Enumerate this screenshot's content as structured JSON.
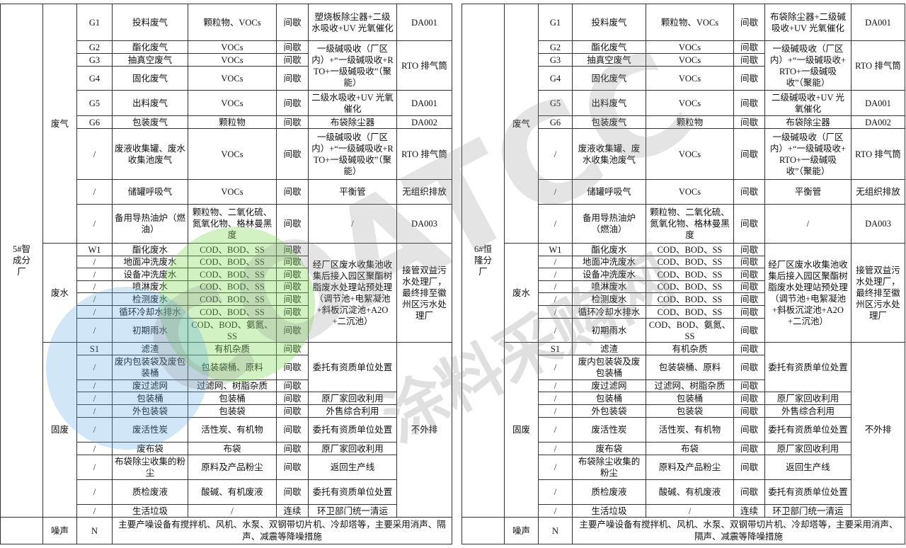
{
  "tables": [
    {
      "factory": "5#智成分厂",
      "groups": [
        {
          "category": "废气",
          "rows": [
            {
              "code": "G1",
              "name": "投料废气",
              "pollutant": "颗粒物、VOCs",
              "mode": "间歇",
              "treatment": "塑烧板除尘器+二级水吸收+UV 光氧催化",
              "outlet": "DA001"
            },
            {
              "code": "G2",
              "name": "酯化废气",
              "pollutant": "VOCs",
              "mode": "间歇",
              "treatment": "一级碱吸收（厂区内）+“一级碱吸收+RTO+一级碱吸收”（聚能）",
              "outlet": "RTO 排气筒"
            },
            {
              "code": "G3",
              "name": "抽真空废气",
              "pollutant": "VOCs",
              "mode": "间歇"
            },
            {
              "code": "G4",
              "name": "固化废气",
              "pollutant": "VOCs",
              "mode": "间歇"
            },
            {
              "code": "G5",
              "name": "出料废气",
              "pollutant": "VOCs",
              "mode": "间歇",
              "treatment": "二级水吸收+UV 光氧催化",
              "outlet": "DA001"
            },
            {
              "code": "G6",
              "name": "包装废气",
              "pollutant": "颗粒物",
              "mode": "间歇",
              "treatment": "布袋除尘器",
              "outlet": "DA002"
            },
            {
              "code": "/",
              "name": "废液收集罐、废水收集池废气",
              "pollutant": "VOCs",
              "mode": "间歇",
              "treatment": "一级碱吸收（厂区内）+“一级碱吸收+RTO+一级碱吸收”（聚能）",
              "outlet": "RTO 排气筒"
            },
            {
              "code": "/",
              "name": "储罐呼吸气",
              "pollutant": "VOCs",
              "mode": "间歇",
              "treatment": "平衡管",
              "outlet": "无组织排放"
            },
            {
              "code": "/",
              "name": "备用导热油炉（燃油）",
              "pollutant": "颗粒物、二氧化硫、氮氧化物、格林曼黑度",
              "mode": "间歇",
              "treatment": "/",
              "outlet": "DA003"
            }
          ]
        },
        {
          "category": "废水",
          "rows": [
            {
              "code": "W1",
              "name": "酯化废水",
              "pollutant": "COD、BOD、SS",
              "mode": "间歇",
              "treatment": "经厂区废水收集池收集后接入园区聚酯树脂废水处理站预处理（调节池+电絮凝池+斜板沉淀池+A2O+二沉池）",
              "outlet": "接管双益污水处理厂，最终排至徽州区污水处理厂"
            },
            {
              "code": "/",
              "name": "地面冲洗废水",
              "pollutant": "COD、BOD、SS",
              "mode": "间歇"
            },
            {
              "code": "/",
              "name": "设备冲洗废水",
              "pollutant": "COD、BOD、SS",
              "mode": "间歇"
            },
            {
              "code": "/",
              "name": "喷淋废水",
              "pollutant": "COD、BOD、SS",
              "mode": "间歇"
            },
            {
              "code": "/",
              "name": "检测废水",
              "pollutant": "COD、BOD、SS",
              "mode": "间歇"
            },
            {
              "code": "/",
              "name": "循环冷却水排水",
              "pollutant": "COD、BOD、SS",
              "mode": "间歇"
            },
            {
              "code": "/",
              "name": "初期雨水",
              "pollutant": "COD、BOD、氨氮、SS",
              "mode": "间歇"
            }
          ]
        },
        {
          "category": "固废",
          "rows": [
            {
              "code": "S1",
              "name": "滤渣",
              "pollutant": "有机杂质",
              "mode": "间歇",
              "treatment": "委托有资质单位处置",
              "outlet": "不外排"
            },
            {
              "code": "/",
              "name": "废内包装袋及废包装桶",
              "pollutant": "包装袋桶、原料",
              "mode": "间歇"
            },
            {
              "code": "/",
              "name": "废过滤网",
              "pollutant": "过滤网、树脂杂质",
              "mode": "间歇"
            },
            {
              "code": "/",
              "name": "包装桶",
              "pollutant": "包装桶",
              "mode": "间歇",
              "treatment": "原厂家回收利用"
            },
            {
              "code": "/",
              "name": "外包装袋",
              "pollutant": "包装袋",
              "mode": "间歇",
              "treatment": "外售综合利用"
            },
            {
              "code": "/",
              "name": "废活性炭",
              "pollutant": "活性炭、有机物",
              "mode": "间歇",
              "treatment": "委托有资质单位处置"
            },
            {
              "code": "/",
              "name": "废布袋",
              "pollutant": "布袋",
              "mode": "间歇",
              "treatment": "原厂家回收利用"
            },
            {
              "code": "/",
              "name": "布袋除尘收集的粉尘",
              "pollutant": "原料及产品粉尘",
              "mode": "间歇",
              "treatment": "返回生产线"
            },
            {
              "code": "/",
              "name": "质检废液",
              "pollutant": "酸碱、有机废液",
              "mode": "间歇",
              "treatment": "委托有资质单位处置"
            },
            {
              "code": "/",
              "name": "生活垃圾",
              "pollutant": "/",
              "mode": "连续",
              "treatment": "环卫部门统一清运"
            }
          ]
        }
      ],
      "noise": {
        "category": "噪声",
        "code": "N",
        "text": "主要产噪设备有搅拌机、风机、水泵、双钢带切片机、冷却塔等，主要采用消声、隔声、减震等降噪措施"
      }
    },
    {
      "factory": "6#恒隆分厂",
      "groups": [
        {
          "category": "废气",
          "rows": [
            {
              "code": "G1",
              "name": "投料废气",
              "pollutant": "颗粒物、VOCs",
              "mode": "间歇",
              "treatment": "布袋除尘器+二级碱吸收+UV 光氧催化",
              "outlet": "DA001"
            },
            {
              "code": "G2",
              "name": "酯化废气",
              "pollutant": "VOCs",
              "mode": "间歇",
              "treatment": "一级碱吸收（厂区内）+“一级碱吸收+RTO+一级碱吸收”（聚能）",
              "outlet": "RTO 排气筒"
            },
            {
              "code": "G3",
              "name": "抽真空废气",
              "pollutant": "VOCs",
              "mode": "间歇"
            },
            {
              "code": "G4",
              "name": "固化废气",
              "pollutant": "VOCs",
              "mode": "间歇"
            },
            {
              "code": "G5",
              "name": "出料废气",
              "pollutant": "VOCs",
              "mode": "间歇",
              "treatment": "二级碱吸收+UV 光氧催化",
              "outlet": "DA001"
            },
            {
              "code": "G6",
              "name": "包装废气",
              "pollutant": "颗粒物",
              "mode": "间歇",
              "treatment": "布袋除尘器",
              "outlet": "DA002"
            },
            {
              "code": "/",
              "name": "废液收集罐、废水收集池废气",
              "pollutant": "VOCs",
              "mode": "间歇",
              "treatment": "一级碱吸收（厂区内）+“一级碱吸收+RTO+一级碱吸收”（聚能）",
              "outlet": "RTO 排气筒"
            },
            {
              "code": "/",
              "name": "储罐呼吸气",
              "pollutant": "VOCs",
              "mode": "间歇",
              "treatment": "平衡管",
              "outlet": "无组织排放"
            },
            {
              "code": "/",
              "name": "备用导热油炉（燃油）",
              "pollutant": "颗粒物、二氧化硫、氮氧化物、格林曼黑度",
              "mode": "间歇",
              "treatment": "/",
              "outlet": "DA003"
            }
          ]
        },
        {
          "category": "废水",
          "rows": [
            {
              "code": "W1",
              "name": "酯化废水",
              "pollutant": "COD、BOD、SS",
              "mode": "间歇",
              "treatment": "经厂区废水收集池收集后接入园区聚酯树脂废水处理站预处理（调节池+电絮凝池+斜板沉淀池+A2O+二沉池）",
              "outlet": "接管双益污水处理厂，最终排至徽州区污水处理厂"
            },
            {
              "code": "/",
              "name": "地面冲洗废水",
              "pollutant": "COD、BOD、SS",
              "mode": "间歇"
            },
            {
              "code": "/",
              "name": "设备冲洗废水",
              "pollutant": "COD、BOD、SS",
              "mode": "间歇"
            },
            {
              "code": "/",
              "name": "喷淋废水",
              "pollutant": "COD、BOD、SS",
              "mode": "间歇"
            },
            {
              "code": "/",
              "name": "检测废水",
              "pollutant": "COD、BOD、SS",
              "mode": "间歇"
            },
            {
              "code": "/",
              "name": "循环冷却水排水",
              "pollutant": "COD、BOD、SS",
              "mode": "间歇"
            },
            {
              "code": "/",
              "name": "初期雨水",
              "pollutant": "COD、BOD、氨氮、SS",
              "mode": "间歇"
            }
          ]
        },
        {
          "category": "固废",
          "rows": [
            {
              "code": "S1",
              "name": "滤渣",
              "pollutant": "有机杂质",
              "mode": "间歇",
              "treatment": "委托有资质单位处置",
              "outlet": "不外排"
            },
            {
              "code": "/",
              "name": "废内包装袋及废包装桶",
              "pollutant": "包装袋桶、原料",
              "mode": "间歇"
            },
            {
              "code": "/",
              "name": "废过滤网",
              "pollutant": "过滤网、树脂杂质",
              "mode": "间歇"
            },
            {
              "code": "/",
              "name": "包装桶",
              "pollutant": "包装桶",
              "mode": "间歇",
              "treatment": "原厂家回收利用"
            },
            {
              "code": "/",
              "name": "外包装袋",
              "pollutant": "包装袋",
              "mode": "间歇",
              "treatment": "外售综合利用"
            },
            {
              "code": "/",
              "name": "废活性炭",
              "pollutant": "活性炭、有机物",
              "mode": "间歇",
              "treatment": "委托有资质单位处置"
            },
            {
              "code": "/",
              "name": "废布袋",
              "pollutant": "布袋",
              "mode": "间歇",
              "treatment": "原厂家回收利用"
            },
            {
              "code": "/",
              "name": "布袋除尘收集的粉尘",
              "pollutant": "原料及产品粉尘",
              "mode": "间歇",
              "treatment": "返回生产线"
            },
            {
              "code": "/",
              "name": "质检废液",
              "pollutant": "酸碱、有机废液",
              "mode": "间歇",
              "treatment": "委托有资质单位处置"
            },
            {
              "code": "/",
              "name": "生活垃圾",
              "pollutant": "/",
              "mode": "连续",
              "treatment": "环卫部门统一清运"
            }
          ]
        }
      ],
      "noise": {
        "category": "噪声",
        "code": "N",
        "text": "主要产噪设备有搅拌机、风机、水泵、双钢带切片机、冷却塔等，主要采用消声、隔声、减震等降噪措施"
      }
    }
  ],
  "watermark": {
    "latin": "COATCC",
    "cjk": "涂料采购网"
  }
}
